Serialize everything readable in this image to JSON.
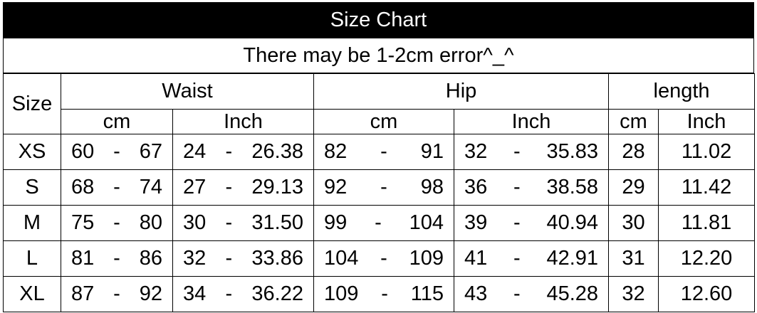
{
  "title": "Size Chart",
  "subtitle": "There may be 1-2cm error^_^",
  "headers": {
    "size": "Size",
    "waist": "Waist",
    "hip": "Hip",
    "length": "length",
    "sub": [
      "cm",
      "Inch",
      "cm",
      "Inch",
      "cm",
      "Inch"
    ]
  },
  "rows": [
    {
      "size": "XS",
      "waist_cm": [
        "60",
        "67"
      ],
      "waist_in": [
        "24",
        "26.38"
      ],
      "hip_cm": [
        "82",
        "91"
      ],
      "hip_in": [
        "32",
        "35.83"
      ],
      "len_cm": "28",
      "len_in": "11.02"
    },
    {
      "size": "S",
      "waist_cm": [
        "68",
        "74"
      ],
      "waist_in": [
        "27",
        "29.13"
      ],
      "hip_cm": [
        "92",
        "98"
      ],
      "hip_in": [
        "36",
        "38.58"
      ],
      "len_cm": "29",
      "len_in": "11.42"
    },
    {
      "size": "M",
      "waist_cm": [
        "75",
        "80"
      ],
      "waist_in": [
        "30",
        "31.50"
      ],
      "hip_cm": [
        "99",
        "104"
      ],
      "hip_in": [
        "39",
        "40.94"
      ],
      "len_cm": "30",
      "len_in": "11.81"
    },
    {
      "size": "L",
      "waist_cm": [
        "81",
        "86"
      ],
      "waist_in": [
        "32",
        "33.86"
      ],
      "hip_cm": [
        "104",
        "109"
      ],
      "hip_in": [
        "41",
        "42.91"
      ],
      "len_cm": "31",
      "len_in": "12.20"
    },
    {
      "size": "XL",
      "waist_cm": [
        "87",
        "92"
      ],
      "waist_in": [
        "34",
        "36.22"
      ],
      "hip_cm": [
        "109",
        "115"
      ],
      "hip_in": [
        "43",
        "45.28"
      ],
      "len_cm": "32",
      "len_in": "12.60"
    }
  ],
  "range_separator": "-"
}
